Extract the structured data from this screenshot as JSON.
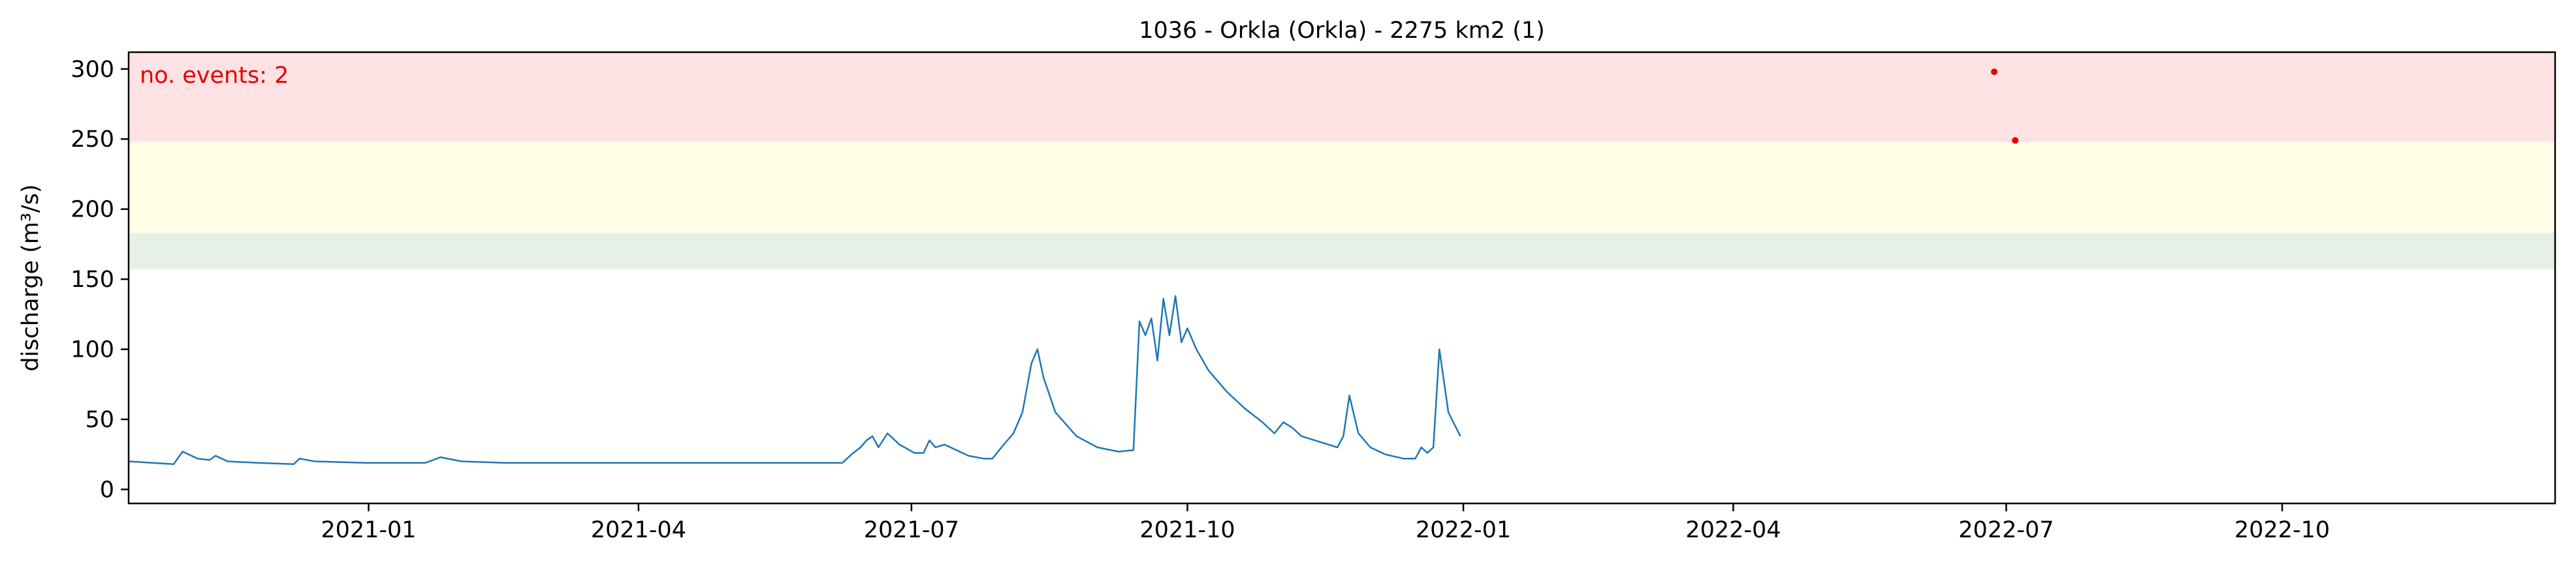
{
  "chart_data": {
    "type": "line",
    "title": "1036 - Orkla (Orkla) - 2275 km2 (1)",
    "xlabel": "",
    "ylabel": "discharge (m³/s)",
    "xlim": [
      "2020-10-13",
      "2022-12-31"
    ],
    "ylim": [
      -10,
      312
    ],
    "yticks": [
      0,
      50,
      100,
      150,
      200,
      250,
      300
    ],
    "xticks": [
      "2021-01",
      "2021-04",
      "2021-07",
      "2021-10",
      "2022-01",
      "2022-04",
      "2022-07",
      "2022-10"
    ],
    "grid": false,
    "bands": [
      {
        "from": 157,
        "to": 183,
        "color": "#e6f0e4"
      },
      {
        "from": 183,
        "to": 248,
        "color": "#fffde6"
      },
      {
        "from": 248,
        "to": 312,
        "color": "#ffe2e4"
      }
    ],
    "annotation": {
      "text": "no. events: 2",
      "color": "#e60000"
    },
    "series": [
      {
        "color": "#1f77b4",
        "points": [
          [
            "2020-10-13",
            20
          ],
          [
            "2020-10-28",
            18
          ],
          [
            "2020-10-31",
            27
          ],
          [
            "2020-11-05",
            22
          ],
          [
            "2020-11-09",
            21
          ],
          [
            "2020-11-11",
            24
          ],
          [
            "2020-11-15",
            20
          ],
          [
            "2020-11-25",
            19
          ],
          [
            "2020-12-07",
            18
          ],
          [
            "2020-12-09",
            22
          ],
          [
            "2020-12-14",
            20
          ],
          [
            "2020-12-31",
            19
          ],
          [
            "2021-01-20",
            19
          ],
          [
            "2021-01-25",
            23
          ],
          [
            "2021-02-01",
            20
          ],
          [
            "2021-02-15",
            19
          ],
          [
            "2021-03-01",
            19
          ],
          [
            "2021-04-01",
            19
          ],
          [
            "2021-05-01",
            19
          ],
          [
            "2021-05-15",
            19
          ],
          [
            "2021-06-01",
            19
          ],
          [
            "2021-06-08",
            19
          ],
          [
            "2021-06-11",
            25
          ],
          [
            "2021-06-14",
            30
          ],
          [
            "2021-06-16",
            35
          ],
          [
            "2021-06-18",
            38
          ],
          [
            "2021-06-20",
            30
          ],
          [
            "2021-06-23",
            40
          ],
          [
            "2021-06-27",
            32
          ],
          [
            "2021-07-02",
            26
          ],
          [
            "2021-07-05",
            26
          ],
          [
            "2021-07-07",
            35
          ],
          [
            "2021-07-09",
            30
          ],
          [
            "2021-07-12",
            32
          ],
          [
            "2021-07-16",
            28
          ],
          [
            "2021-07-20",
            24
          ],
          [
            "2021-07-25",
            22
          ],
          [
            "2021-07-28",
            22
          ],
          [
            "2021-07-31",
            30
          ],
          [
            "2021-08-04",
            40
          ],
          [
            "2021-08-07",
            55
          ],
          [
            "2021-08-10",
            90
          ],
          [
            "2021-08-12",
            100
          ],
          [
            "2021-08-14",
            80
          ],
          [
            "2021-08-18",
            55
          ],
          [
            "2021-08-25",
            38
          ],
          [
            "2021-09-01",
            30
          ],
          [
            "2021-09-08",
            27
          ],
          [
            "2021-09-13",
            28
          ],
          [
            "2021-09-15",
            120
          ],
          [
            "2021-09-17",
            110
          ],
          [
            "2021-09-19",
            122
          ],
          [
            "2021-09-21",
            92
          ],
          [
            "2021-09-23",
            136
          ],
          [
            "2021-09-25",
            110
          ],
          [
            "2021-09-27",
            138
          ],
          [
            "2021-09-29",
            105
          ],
          [
            "2021-10-01",
            115
          ],
          [
            "2021-10-04",
            100
          ],
          [
            "2021-10-08",
            85
          ],
          [
            "2021-10-14",
            70
          ],
          [
            "2021-10-20",
            58
          ],
          [
            "2021-10-26",
            48
          ],
          [
            "2021-10-30",
            40
          ],
          [
            "2021-11-02",
            48
          ],
          [
            "2021-11-05",
            44
          ],
          [
            "2021-11-08",
            38
          ],
          [
            "2021-11-14",
            34
          ],
          [
            "2021-11-20",
            30
          ],
          [
            "2021-11-22",
            38
          ],
          [
            "2021-11-24",
            67
          ],
          [
            "2021-11-27",
            40
          ],
          [
            "2021-12-01",
            30
          ],
          [
            "2021-12-06",
            25
          ],
          [
            "2021-12-12",
            22
          ],
          [
            "2021-12-16",
            22
          ],
          [
            "2021-12-18",
            30
          ],
          [
            "2021-12-20",
            26
          ],
          [
            "2021-12-22",
            30
          ],
          [
            "2021-12-24",
            100
          ],
          [
            "2021-12-27",
            55
          ],
          [
            "2021-12-31",
            38
          ]
        ]
      }
    ],
    "events": [
      {
        "x": "2022-06-27",
        "y": 298
      },
      {
        "x": "2022-07-04",
        "y": 249
      }
    ]
  }
}
